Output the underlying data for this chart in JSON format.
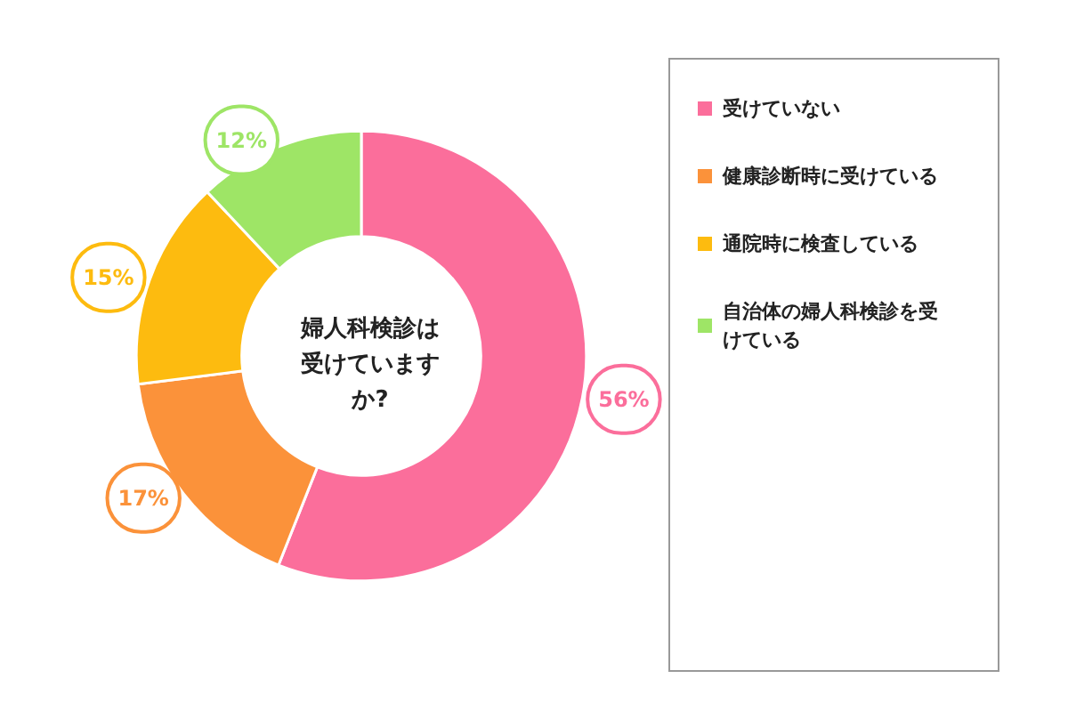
{
  "chart_data": {
    "type": "donut",
    "title": "婦人科検診は受けていますか?",
    "categories": [
      "受けていない",
      "健康診断時に受けている",
      "通院時に検査している",
      "自治体の婦人科検診を受けている"
    ],
    "values": [
      56,
      17,
      15,
      12
    ],
    "colors": [
      "#fb6e9b",
      "#fb923a",
      "#fdbb0f",
      "#9ee566"
    ],
    "value_labels": [
      "56%",
      "17%",
      "15%",
      "12%"
    ],
    "legend": "right"
  }
}
